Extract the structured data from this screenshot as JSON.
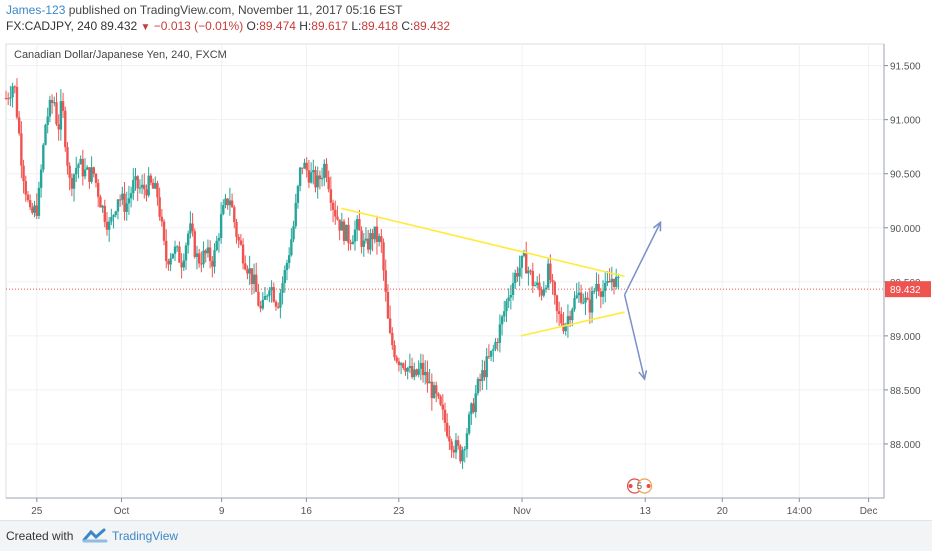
{
  "header": {
    "author": "James-123",
    "published": "published on TradingView.com, November 11, 2017 05:16 EST",
    "symbol": "FX:CADJPY, 240",
    "last": "89.432",
    "change": "−0.013 (−0.01%)",
    "o_label": "O:",
    "o_value": "89.474",
    "h_label": "H:",
    "h_value": "89.617",
    "l_label": "L:",
    "l_value": "89.418",
    "c_label": "C:",
    "c_value": "89.432"
  },
  "footer": {
    "created_with": "Created with",
    "brand": "TradingView"
  },
  "colors": {
    "up": "#26a69a",
    "down": "#ef5350",
    "trendline": "#ffeb3b",
    "arrow": "#7b8fc8",
    "price_badge": "#ef5350",
    "grid": "#eef1f5"
  },
  "chart_data": {
    "type": "candlestick",
    "title": "Canadian Dollar/Japanese Yen, 240, FXCM",
    "ylim": [
      87.5,
      91.7
    ],
    "y_ticks": [
      "91.500",
      "91.000",
      "90.500",
      "90.000",
      "89.500",
      "89.000",
      "88.500",
      "88.000"
    ],
    "y_tick_values": [
      91.5,
      91.0,
      90.5,
      90.0,
      89.5,
      89.0,
      88.5,
      88.0
    ],
    "x_ticks": [
      "25",
      "Oct",
      "9",
      "16",
      "23",
      "Nov",
      "13",
      "20",
      "14:00",
      "Dec"
    ],
    "last_price": "89.432",
    "last_price_value": 89.432,
    "close_path": [
      {
        "t": 0,
        "y": 91.2
      },
      {
        "t": 2,
        "y": 91.35
      },
      {
        "t": 4,
        "y": 90.6
      },
      {
        "t": 6,
        "y": 90.1
      },
      {
        "t": 8,
        "y": 90.2
      },
      {
        "t": 10,
        "y": 91.0
      },
      {
        "t": 12,
        "y": 91.2
      },
      {
        "t": 13,
        "y": 90.9
      },
      {
        "t": 14,
        "y": 91.15
      },
      {
        "t": 16,
        "y": 90.4
      },
      {
        "t": 18,
        "y": 90.6
      },
      {
        "t": 20,
        "y": 90.5
      },
      {
        "t": 22,
        "y": 90.5
      },
      {
        "t": 24,
        "y": 90.2
      },
      {
        "t": 26,
        "y": 90.0
      },
      {
        "t": 28,
        "y": 90.3
      },
      {
        "t": 30,
        "y": 90.2
      },
      {
        "t": 32,
        "y": 90.4
      },
      {
        "t": 34,
        "y": 90.35
      },
      {
        "t": 36,
        "y": 90.4
      },
      {
        "t": 38,
        "y": 90.3
      },
      {
        "t": 40,
        "y": 89.7
      },
      {
        "t": 42,
        "y": 89.8
      },
      {
        "t": 44,
        "y": 89.7
      },
      {
        "t": 46,
        "y": 90.0
      },
      {
        "t": 48,
        "y": 89.7
      },
      {
        "t": 50,
        "y": 89.75
      },
      {
        "t": 52,
        "y": 89.7
      },
      {
        "t": 54,
        "y": 90.1
      },
      {
        "t": 56,
        "y": 90.3
      },
      {
        "t": 58,
        "y": 89.9
      },
      {
        "t": 60,
        "y": 89.7
      },
      {
        "t": 62,
        "y": 89.5
      },
      {
        "t": 64,
        "y": 89.2
      },
      {
        "t": 66,
        "y": 89.5
      },
      {
        "t": 68,
        "y": 89.3
      },
      {
        "t": 70,
        "y": 89.6
      },
      {
        "t": 72,
        "y": 90.0
      },
      {
        "t": 74,
        "y": 90.6
      },
      {
        "t": 76,
        "y": 90.5
      },
      {
        "t": 78,
        "y": 90.4
      },
      {
        "t": 80,
        "y": 90.6
      },
      {
        "t": 82,
        "y": 90.2
      },
      {
        "t": 84,
        "y": 90.0
      },
      {
        "t": 86,
        "y": 89.9
      },
      {
        "t": 88,
        "y": 90.0
      },
      {
        "t": 90,
        "y": 89.8
      },
      {
        "t": 92,
        "y": 89.95
      },
      {
        "t": 94,
        "y": 89.85
      },
      {
        "t": 96,
        "y": 89.0
      },
      {
        "t": 98,
        "y": 88.8
      },
      {
        "t": 100,
        "y": 88.75
      },
      {
        "t": 102,
        "y": 88.6
      },
      {
        "t": 104,
        "y": 88.7
      },
      {
        "t": 106,
        "y": 88.55
      },
      {
        "t": 108,
        "y": 88.4
      },
      {
        "t": 110,
        "y": 88.2
      },
      {
        "t": 112,
        "y": 88.0
      },
      {
        "t": 114,
        "y": 87.9
      },
      {
        "t": 116,
        "y": 88.2
      },
      {
        "t": 118,
        "y": 88.5
      },
      {
        "t": 120,
        "y": 88.7
      },
      {
        "t": 122,
        "y": 88.85
      },
      {
        "t": 124,
        "y": 89.1
      },
      {
        "t": 126,
        "y": 89.4
      },
      {
        "t": 128,
        "y": 89.6
      },
      {
        "t": 130,
        "y": 89.7
      },
      {
        "t": 132,
        "y": 89.5
      },
      {
        "t": 134,
        "y": 89.4
      },
      {
        "t": 136,
        "y": 89.6
      },
      {
        "t": 138,
        "y": 89.2
      },
      {
        "t": 140,
        "y": 89.1
      },
      {
        "t": 142,
        "y": 89.3
      },
      {
        "t": 144,
        "y": 89.4
      },
      {
        "t": 146,
        "y": 89.25
      },
      {
        "t": 148,
        "y": 89.5
      },
      {
        "t": 150,
        "y": 89.4
      },
      {
        "t": 152,
        "y": 89.55
      },
      {
        "t": 154,
        "y": 89.43
      }
    ],
    "trendlines": [
      {
        "name": "upper",
        "from": {
          "t": 84,
          "y": 90.18
        },
        "to": {
          "t": 155,
          "y": 89.55
        }
      },
      {
        "name": "lower",
        "from": {
          "t": 129,
          "y": 89.0
        },
        "to": {
          "t": 155,
          "y": 89.22
        }
      }
    ],
    "projection_arrows": [
      {
        "name": "up",
        "from": {
          "t": 155,
          "y": 89.38
        },
        "to": {
          "t": 164,
          "y": 90.05
        }
      },
      {
        "name": "down",
        "from": {
          "t": 155,
          "y": 89.38
        },
        "to": {
          "t": 160,
          "y": 88.6
        }
      }
    ],
    "event_badge": "5",
    "t_range": [
      0,
      220
    ]
  }
}
